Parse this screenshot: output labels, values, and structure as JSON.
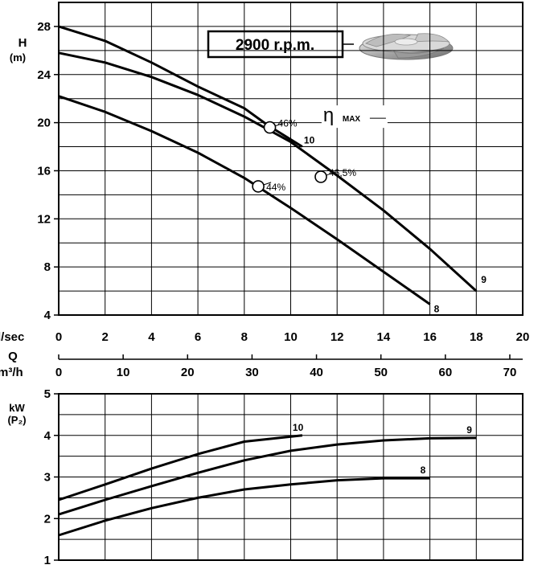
{
  "header": {
    "speed_label": "2900 r.p.m.",
    "impeller_image": "impeller-photo"
  },
  "chart_data": [
    {
      "type": "line",
      "title": "",
      "ylabel": "H",
      "ylabel_unit": "(m)",
      "xlim": [
        0,
        20
      ],
      "ylim": [
        4,
        30
      ],
      "yticks": [
        4,
        8,
        12,
        16,
        20,
        24,
        28
      ],
      "grid": true,
      "series": [
        {
          "name": "8",
          "x": [
            0,
            2,
            4,
            6,
            8,
            10,
            12,
            14,
            16
          ],
          "y": [
            22.2,
            20.9,
            19.3,
            17.5,
            15.4,
            12.9,
            10.3,
            7.6,
            4.9
          ]
        },
        {
          "name": "9",
          "x": [
            0,
            2,
            4,
            6,
            8,
            10,
            12,
            14,
            16,
            18
          ],
          "y": [
            25.8,
            25.0,
            23.8,
            22.3,
            20.5,
            18.4,
            15.6,
            12.7,
            9.5,
            6.0
          ]
        },
        {
          "name": "10",
          "x": [
            0,
            2,
            4,
            6,
            8,
            9,
            10.5
          ],
          "y": [
            28.0,
            26.8,
            25.0,
            23.0,
            21.2,
            19.8,
            18.0
          ]
        }
      ],
      "efficiency_points": [
        {
          "label": "44%",
          "x": 8.6,
          "y": 14.7
        },
        {
          "label": "46,5%",
          "x": 11.3,
          "y": 15.5
        },
        {
          "label": "46%",
          "x": 9.1,
          "y": 19.6
        }
      ],
      "efficiency_legend": {
        "symbol": "η",
        "text": "MAX"
      }
    },
    {
      "type": "axis-scales",
      "flow_ls": {
        "unit": "l/sec",
        "ticks": [
          0,
          2,
          4,
          6,
          8,
          10,
          12,
          14,
          16,
          18,
          20
        ]
      },
      "flow_label": "Q",
      "flow_m3h": {
        "unit": "m³/h",
        "ticks": [
          0,
          10,
          20,
          30,
          40,
          50,
          60,
          70
        ]
      }
    },
    {
      "type": "line",
      "title": "",
      "ylabel": "kW",
      "ylabel_unit": "(P₂)",
      "xlim": [
        0,
        20
      ],
      "ylim": [
        1,
        5
      ],
      "yticks": [
        1,
        2,
        3,
        4,
        5
      ],
      "grid": true,
      "series": [
        {
          "name": "8",
          "x": [
            0,
            2,
            4,
            6,
            8,
            10,
            12,
            14,
            16
          ],
          "y": [
            1.6,
            1.95,
            2.25,
            2.5,
            2.7,
            2.82,
            2.92,
            2.97,
            2.97
          ]
        },
        {
          "name": "9",
          "x": [
            0,
            2,
            4,
            6,
            8,
            10,
            12,
            14,
            16,
            18
          ],
          "y": [
            2.1,
            2.45,
            2.78,
            3.1,
            3.4,
            3.63,
            3.78,
            3.88,
            3.93,
            3.94
          ]
        },
        {
          "name": "10",
          "x": [
            0,
            2,
            4,
            6,
            8,
            10.5
          ],
          "y": [
            2.45,
            2.82,
            3.2,
            3.55,
            3.85,
            4.0
          ]
        }
      ]
    }
  ]
}
